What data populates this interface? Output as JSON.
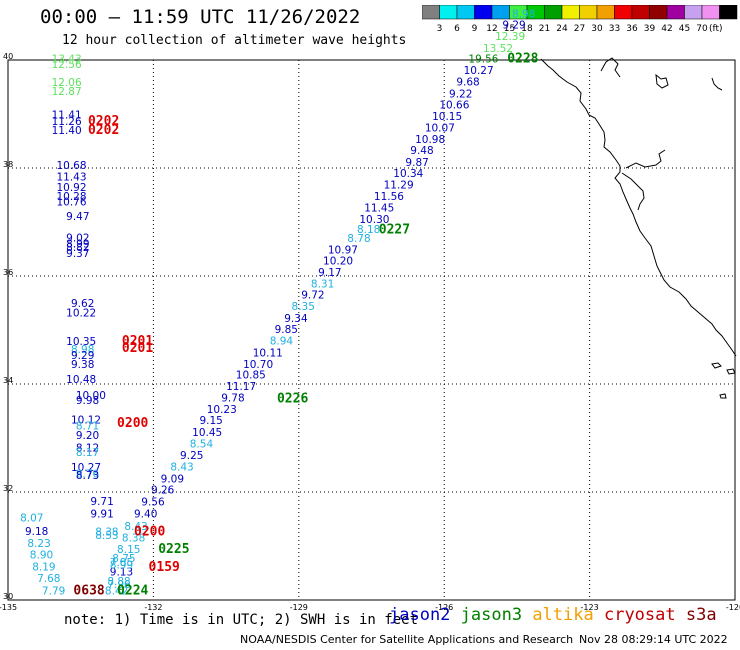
{
  "title": "00:00 — 11:59 UTC 11/26/2022",
  "subtitle": "12 hour collection of altimeter wave heights",
  "colorbar": {
    "unit": "(ft)",
    "colors": [
      "#808080",
      "#00f0f0",
      "#00c8f0",
      "#0000f0",
      "#00a0f0",
      "#40f040",
      "#00c800",
      "#00a000",
      "#f0f000",
      "#f0d000",
      "#f0a000",
      "#f00000",
      "#c00000",
      "#900000",
      "#a000a0",
      "#c8a0f0",
      "#f090f0",
      "#000000"
    ],
    "labels": [
      "3",
      "6",
      "9",
      "12",
      "15",
      "18",
      "21",
      "24",
      "27",
      "30",
      "33",
      "36",
      "39",
      "42",
      "45",
      "70"
    ]
  },
  "axes": {
    "y_labels": [
      {
        "v": 40,
        "t": "40"
      },
      {
        "v": 38,
        "t": "38"
      },
      {
        "v": 36,
        "t": "36"
      },
      {
        "v": 34,
        "t": "34"
      },
      {
        "v": 32,
        "t": "32"
      },
      {
        "v": 30,
        "t": "30"
      }
    ],
    "x_labels": [
      {
        "v": -135,
        "t": "-135"
      },
      {
        "v": -132,
        "t": "-132"
      },
      {
        "v": -129,
        "t": "-129"
      },
      {
        "v": -126,
        "t": "-126"
      },
      {
        "v": -123,
        "t": "-123"
      },
      {
        "v": -120,
        "t": "-120"
      }
    ],
    "lon_range": [
      -135,
      -120
    ],
    "lat_range": [
      30,
      40
    ],
    "grid_lons": [
      -132,
      -129,
      -126,
      -123
    ],
    "grid_lats": [
      38,
      36,
      34,
      32
    ]
  },
  "colors": {
    "lightgreen": "#60e060",
    "blue": "#0000c0",
    "cyan": "#20b0e0",
    "red": "#e00000",
    "green": "#008000",
    "brown": "#800000"
  },
  "heights": [
    {
      "t": "13.43",
      "lon": -134.1,
      "lat": 39.95,
      "c": "lightgreen"
    },
    {
      "t": "12.56",
      "lon": -134.1,
      "lat": 39.85,
      "c": "lightgreen"
    },
    {
      "t": "12.06",
      "lon": -134.1,
      "lat": 39.52,
      "c": "lightgreen"
    },
    {
      "t": "12.87",
      "lon": -134.1,
      "lat": 39.35,
      "c": "lightgreen"
    },
    {
      "t": "11.41",
      "lon": -134.1,
      "lat": 38.92,
      "c": "blue"
    },
    {
      "t": "11.26",
      "lon": -134.1,
      "lat": 38.8,
      "c": "blue"
    },
    {
      "t": "11.40",
      "lon": -134.1,
      "lat": 38.63,
      "c": "blue"
    },
    {
      "t": "10.68",
      "lon": -134.0,
      "lat": 37.98,
      "c": "blue"
    },
    {
      "t": "11.43",
      "lon": -134.0,
      "lat": 37.77,
      "c": "blue"
    },
    {
      "t": "10.92",
      "lon": -134.0,
      "lat": 37.57,
      "c": "blue"
    },
    {
      "t": "10.28",
      "lon": -134.0,
      "lat": 37.41,
      "c": "blue"
    },
    {
      "t": "10.76",
      "lon": -134.0,
      "lat": 37.31,
      "c": "blue"
    },
    {
      "t": "9.47",
      "lon": -133.8,
      "lat": 37.04,
      "c": "blue"
    },
    {
      "t": "9.02",
      "lon": -133.8,
      "lat": 36.64,
      "c": "blue"
    },
    {
      "t": "8.99",
      "lon": -133.8,
      "lat": 36.53,
      "c": "blue"
    },
    {
      "t": "8.82",
      "lon": -133.8,
      "lat": 36.46,
      "c": "blue"
    },
    {
      "t": "9.37",
      "lon": -133.8,
      "lat": 36.35,
      "c": "blue"
    },
    {
      "t": "9.62",
      "lon": -133.7,
      "lat": 35.43,
      "c": "blue"
    },
    {
      "t": "10.22",
      "lon": -133.8,
      "lat": 35.25,
      "c": "blue"
    },
    {
      "t": "10.35",
      "lon": -133.8,
      "lat": 34.72,
      "c": "blue"
    },
    {
      "t": "8.98",
      "lon": -133.7,
      "lat": 34.57,
      "c": "cyan"
    },
    {
      "t": "9.29",
      "lon": -133.7,
      "lat": 34.46,
      "c": "blue"
    },
    {
      "t": "9.38",
      "lon": -133.7,
      "lat": 34.3,
      "c": "blue"
    },
    {
      "t": "10.48",
      "lon": -133.8,
      "lat": 34.02,
      "c": "blue"
    },
    {
      "t": "10.00",
      "lon": -133.6,
      "lat": 33.72,
      "c": "blue"
    },
    {
      "t": "9.98",
      "lon": -133.6,
      "lat": 33.63,
      "c": "blue"
    },
    {
      "t": "10.12",
      "lon": -133.7,
      "lat": 33.27,
      "c": "blue"
    },
    {
      "t": "8.71",
      "lon": -133.6,
      "lat": 33.16,
      "c": "cyan"
    },
    {
      "t": "9.20",
      "lon": -133.6,
      "lat": 32.98,
      "c": "blue"
    },
    {
      "t": "8.12",
      "lon": -133.6,
      "lat": 32.75,
      "c": "blue"
    },
    {
      "t": "8.17",
      "lon": -133.6,
      "lat": 32.67,
      "c": "cyan"
    },
    {
      "t": "10.27",
      "lon": -133.7,
      "lat": 32.39,
      "c": "blue"
    },
    {
      "t": "8.76",
      "lon": -133.6,
      "lat": 32.27,
      "c": "cyan"
    },
    {
      "t": "8.73",
      "lon": -133.6,
      "lat": 32.24,
      "c": "blue"
    },
    {
      "t": "9.71",
      "lon": -133.3,
      "lat": 31.76,
      "c": "blue"
    },
    {
      "t": "9.91",
      "lon": -133.3,
      "lat": 31.53,
      "c": "blue"
    },
    {
      "t": "8.38",
      "lon": -133.2,
      "lat": 31.19,
      "c": "cyan"
    },
    {
      "t": "8.53",
      "lon": -133.2,
      "lat": 31.13,
      "c": "cyan"
    },
    {
      "t": "8.07",
      "lon": -134.75,
      "lat": 31.45,
      "c": "cyan"
    },
    {
      "t": "9.18",
      "lon": -134.65,
      "lat": 31.2,
      "c": "blue"
    },
    {
      "t": "8.23",
      "lon": -134.6,
      "lat": 30.98,
      "c": "cyan"
    },
    {
      "t": "8.90",
      "lon": -134.55,
      "lat": 30.77,
      "c": "cyan"
    },
    {
      "t": "8.19",
      "lon": -134.5,
      "lat": 30.55,
      "c": "cyan"
    },
    {
      "t": "7.68",
      "lon": -134.4,
      "lat": 30.33,
      "c": "cyan"
    },
    {
      "t": "7.79",
      "lon": -134.3,
      "lat": 30.1,
      "c": "cyan"
    },
    {
      "t": "8.42",
      "lon": -133.0,
      "lat": 30.1,
      "c": "cyan"
    },
    {
      "t": "7.96",
      "lon": -132.95,
      "lat": 30.22,
      "c": "cyan"
    },
    {
      "t": "8.88",
      "lon": -132.95,
      "lat": 30.28,
      "c": "cyan"
    },
    {
      "t": "9.13",
      "lon": -132.9,
      "lat": 30.45,
      "c": "blue"
    },
    {
      "t": "8.99",
      "lon": -132.9,
      "lat": 30.58,
      "c": "cyan"
    },
    {
      "t": "7.85",
      "lon": -132.9,
      "lat": 30.63,
      "c": "cyan"
    },
    {
      "t": "8.75",
      "lon": -132.85,
      "lat": 30.7,
      "c": "cyan"
    },
    {
      "t": "8.15",
      "lon": -132.75,
      "lat": 30.87,
      "c": "cyan"
    },
    {
      "t": "8.38",
      "lon": -132.65,
      "lat": 31.08,
      "c": "cyan"
    },
    {
      "t": "8.43",
      "lon": -132.6,
      "lat": 31.3,
      "c": "cyan"
    },
    {
      "t": "9.40",
      "lon": -132.4,
      "lat": 31.53,
      "c": "blue"
    },
    {
      "t": "9.56",
      "lon": -132.25,
      "lat": 31.75,
      "c": "blue"
    },
    {
      "t": "9.26",
      "lon": -132.05,
      "lat": 31.97,
      "c": "blue"
    },
    {
      "t": "9.09",
      "lon": -131.85,
      "lat": 32.18,
      "c": "blue"
    },
    {
      "t": "8.43",
      "lon": -131.65,
      "lat": 32.4,
      "c": "cyan"
    },
    {
      "t": "9.25",
      "lon": -131.45,
      "lat": 32.61,
      "c": "blue"
    },
    {
      "t": "8.54",
      "lon": -131.25,
      "lat": 32.82,
      "c": "cyan"
    },
    {
      "t": "10.45",
      "lon": -131.2,
      "lat": 33.04,
      "c": "blue"
    },
    {
      "t": "9.15",
      "lon": -131.05,
      "lat": 33.26,
      "c": "blue"
    },
    {
      "t": "10.23",
      "lon": -130.9,
      "lat": 33.46,
      "c": "blue"
    },
    {
      "t": "9.78",
      "lon": -130.6,
      "lat": 33.68,
      "c": "blue"
    },
    {
      "t": "11.17",
      "lon": -130.5,
      "lat": 33.89,
      "c": "blue"
    },
    {
      "t": "10.85",
      "lon": -130.3,
      "lat": 34.1,
      "c": "blue"
    },
    {
      "t": "10.70",
      "lon": -130.15,
      "lat": 34.3,
      "c": "blue"
    },
    {
      "t": "10.11",
      "lon": -129.95,
      "lat": 34.51,
      "c": "blue"
    },
    {
      "t": "8.94",
      "lon": -129.6,
      "lat": 34.73,
      "c": "cyan"
    },
    {
      "t": "9.85",
      "lon": -129.5,
      "lat": 34.94,
      "c": "blue"
    },
    {
      "t": "9.34",
      "lon": -129.3,
      "lat": 35.15,
      "c": "blue"
    },
    {
      "t": "8.35",
      "lon": -129.15,
      "lat": 35.37,
      "c": "cyan"
    },
    {
      "t": "9.72",
      "lon": -128.95,
      "lat": 35.58,
      "c": "blue"
    },
    {
      "t": "8.31",
      "lon": -128.75,
      "lat": 35.79,
      "c": "cyan"
    },
    {
      "t": "9.17",
      "lon": -128.6,
      "lat": 36.0,
      "c": "blue"
    },
    {
      "t": "10.20",
      "lon": -128.5,
      "lat": 36.21,
      "c": "blue"
    },
    {
      "t": "10.97",
      "lon": -128.4,
      "lat": 36.42,
      "c": "blue"
    },
    {
      "t": "8.78",
      "lon": -128.0,
      "lat": 36.63,
      "c": "cyan"
    },
    {
      "t": "8.18",
      "lon": -127.8,
      "lat": 36.8,
      "c": "cyan"
    },
    {
      "t": "10.30",
      "lon": -127.75,
      "lat": 36.98,
      "c": "blue"
    },
    {
      "t": "11.45",
      "lon": -127.65,
      "lat": 37.19,
      "c": "blue"
    },
    {
      "t": "11.56",
      "lon": -127.45,
      "lat": 37.41,
      "c": "blue"
    },
    {
      "t": "11.29",
      "lon": -127.25,
      "lat": 37.62,
      "c": "blue"
    },
    {
      "t": "10.34",
      "lon": -127.05,
      "lat": 37.83,
      "c": "blue"
    },
    {
      "t": "9.87",
      "lon": -126.8,
      "lat": 38.04,
      "c": "blue"
    },
    {
      "t": "9.48",
      "lon": -126.7,
      "lat": 38.26,
      "c": "blue"
    },
    {
      "t": "10.98",
      "lon": -126.6,
      "lat": 38.46,
      "c": "blue"
    },
    {
      "t": "10.07",
      "lon": -126.4,
      "lat": 38.68,
      "c": "blue"
    },
    {
      "t": "10.15",
      "lon": -126.25,
      "lat": 38.89,
      "c": "blue"
    },
    {
      "t": "10.66",
      "lon": -126.1,
      "lat": 39.1,
      "c": "blue"
    },
    {
      "t": "9.22",
      "lon": -125.9,
      "lat": 39.31,
      "c": "blue"
    },
    {
      "t": "9.68",
      "lon": -125.75,
      "lat": 39.53,
      "c": "blue"
    },
    {
      "t": "10.27",
      "lon": -125.6,
      "lat": 39.74,
      "c": "blue"
    },
    {
      "t": "19.56",
      "lon": -125.5,
      "lat": 39.95,
      "c": "green"
    },
    {
      "t": "13.52",
      "lon": -125.2,
      "lat": 40.15,
      "c": "lightgreen"
    },
    {
      "t": "12.39",
      "lon": -124.95,
      "lat": 40.37,
      "c": "lightgreen"
    },
    {
      "t": "9.29",
      "lon": -124.8,
      "lat": 40.58,
      "c": "blue"
    },
    {
      "t": "8.98",
      "lon": -124.6,
      "lat": 40.79,
      "c": "cyan"
    }
  ],
  "passes": [
    {
      "t": "0202",
      "lon": -133.35,
      "lat": 38.8,
      "c": "red"
    },
    {
      "t": "0202",
      "lon": -133.35,
      "lat": 38.63,
      "c": "red"
    },
    {
      "t": "0201",
      "lon": -132.65,
      "lat": 34.72,
      "c": "red"
    },
    {
      "t": "0201",
      "lon": -132.65,
      "lat": 34.59,
      "c": "red"
    },
    {
      "t": "0200",
      "lon": -132.75,
      "lat": 33.2,
      "c": "red"
    },
    {
      "t": "0200",
      "lon": -132.4,
      "lat": 31.19,
      "c": "red"
    },
    {
      "t": "0159",
      "lon": -132.1,
      "lat": 30.54,
      "c": "red"
    },
    {
      "t": "0638",
      "lon": -133.65,
      "lat": 30.1,
      "c": "brown"
    },
    {
      "t": "0224",
      "lon": -132.75,
      "lat": 30.1,
      "c": "green"
    },
    {
      "t": "0225",
      "lon": -131.9,
      "lat": 30.87,
      "c": "green"
    },
    {
      "t": "0226",
      "lon": -129.45,
      "lat": 33.66,
      "c": "green"
    },
    {
      "t": "0227",
      "lon": -127.35,
      "lat": 36.79,
      "c": "green"
    },
    {
      "t": "0228",
      "lon": -124.7,
      "lat": 39.95,
      "c": "green"
    }
  ],
  "note": "note: 1) Time is in UTC; 2) SWH is in feet",
  "satellites": [
    {
      "name": "jason2",
      "color": "#0000c0"
    },
    {
      "name": "jason3",
      "color": "#008000"
    },
    {
      "name": "altika",
      "color": "#f0a000"
    },
    {
      "name": "cryosat",
      "color": "#c00000"
    },
    {
      "name": "s3a",
      "color": "#800000"
    }
  ],
  "credit": "NOAA/NESDIS Center for Satellite Applications and Research",
  "timestamp": "Nov 28 08:29:14 UTC 2022"
}
